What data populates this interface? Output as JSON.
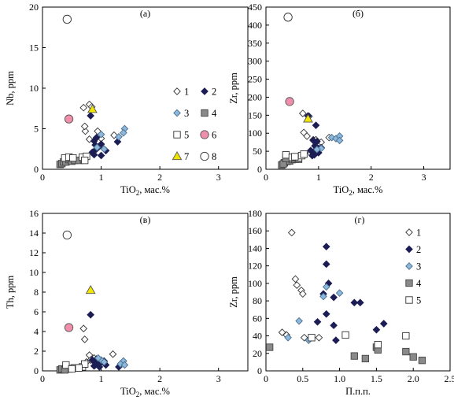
{
  "symbols": {
    "1": {
      "shape": "diamond",
      "fill": "#ffffff",
      "stroke": "#333333"
    },
    "2": {
      "shape": "diamond",
      "fill": "#1c1d54",
      "stroke": "#1c1d54"
    },
    "3": {
      "shape": "diamond",
      "fill": "#8bb8dc",
      "stroke": "#4d6f8e"
    },
    "4": {
      "shape": "square",
      "fill": "#8a8a8a",
      "stroke": "#444444"
    },
    "5": {
      "shape": "square",
      "fill": "#ffffff",
      "stroke": "#333333"
    },
    "6": {
      "shape": "circle",
      "fill": "#ef8fab",
      "stroke": "#555555"
    },
    "7": {
      "shape": "triangle",
      "fill": "#f2e600",
      "stroke": "#555555"
    },
    "8": {
      "shape": "circle",
      "fill": "#ffffff",
      "stroke": "#333333"
    }
  },
  "chart_data": [
    {
      "type": "scatter",
      "panel": "(а)",
      "ylabel": "Nb, ppm",
      "xlabel": "TiO2, мас.%",
      "xlabel_base": "TiO",
      "xlabel_sub": "2",
      "xlabel_rest": ", мас.%",
      "xlim": [
        0,
        3.5
      ],
      "ylim": [
        0,
        20
      ],
      "xticks": [
        "0",
        "1",
        "2",
        "3"
      ],
      "xtick_values": [
        0,
        1,
        2,
        3
      ],
      "yticks": [
        "0",
        "5",
        "10",
        "15",
        "20"
      ],
      "ytick_values": [
        0,
        5,
        10,
        15,
        20
      ],
      "legend": [
        {
          "label": "1",
          "group": "1"
        },
        {
          "label": "2",
          "group": "2"
        },
        {
          "label": "3",
          "group": "3"
        },
        {
          "label": "4",
          "group": "4"
        },
        {
          "label": "5",
          "group": "5"
        },
        {
          "label": "6",
          "group": "6"
        },
        {
          "label": "7",
          "group": "7"
        },
        {
          "label": "8",
          "group": "8"
        }
      ],
      "series": [
        {
          "group": "1",
          "points": [
            [
              0.7,
              7.6
            ],
            [
              0.8,
              8.0
            ],
            [
              0.84,
              7.7
            ],
            [
              0.73,
              4.7
            ],
            [
              0.72,
              5.3
            ],
            [
              0.94,
              4.7
            ],
            [
              1.0,
              3.8
            ],
            [
              1.22,
              4.2
            ],
            [
              0.8,
              3.7
            ]
          ]
        },
        {
          "group": "2",
          "points": [
            [
              0.82,
              6.6
            ],
            [
              0.88,
              3.5
            ],
            [
              0.9,
              3.0
            ],
            [
              0.92,
              2.5
            ],
            [
              0.85,
              2.1
            ],
            [
              0.88,
              1.8
            ],
            [
              0.95,
              2.7
            ],
            [
              1.0,
              3.1
            ],
            [
              1.08,
              2.3
            ],
            [
              1.0,
              1.7
            ],
            [
              1.28,
              3.4
            ],
            [
              0.92,
              3.9
            ]
          ]
        },
        {
          "group": "3",
          "points": [
            [
              1.4,
              5.0
            ],
            [
              1.38,
              4.5
            ],
            [
              1.0,
              4.3
            ],
            [
              1.3,
              4.0
            ],
            [
              1.05,
              2.5
            ],
            [
              0.93,
              2.7
            ]
          ]
        },
        {
          "group": "4",
          "points": [
            [
              0.3,
              0.6
            ],
            [
              0.33,
              0.7
            ],
            [
              0.36,
              0.9
            ],
            [
              0.4,
              0.9
            ],
            [
              0.45,
              1.2
            ],
            [
              0.5,
              1.0
            ],
            [
              0.55,
              1.1
            ],
            [
              0.62,
              1.1
            ],
            [
              0.7,
              1.2
            ]
          ]
        },
        {
          "group": "5",
          "points": [
            [
              0.38,
              1.4
            ],
            [
              0.45,
              1.5
            ],
            [
              0.52,
              1.4
            ],
            [
              0.68,
              1.5
            ],
            [
              0.75,
              1.6
            ],
            [
              0.72,
              1.1
            ]
          ]
        },
        {
          "group": "6",
          "points": [
            [
              0.45,
              6.2
            ]
          ]
        },
        {
          "group": "7",
          "points": [
            [
              0.85,
              7.4
            ]
          ]
        },
        {
          "group": "8",
          "points": [
            [
              0.42,
              18.5
            ]
          ]
        }
      ]
    },
    {
      "type": "scatter",
      "panel": "(б)",
      "ylabel": "Zr, ppm",
      "xlabel": "TiO2, мас.%",
      "xlabel_base": "TiO",
      "xlabel_sub": "2",
      "xlabel_rest": ", мас.%",
      "xlim": [
        0,
        3.5
      ],
      "ylim": [
        0,
        450
      ],
      "xticks": [
        "0",
        "1",
        "2",
        "3"
      ],
      "xtick_values": [
        0,
        1,
        2,
        3
      ],
      "yticks": [
        "0",
        "50",
        "100",
        "150",
        "200",
        "250",
        "300",
        "350",
        "400",
        "450"
      ],
      "ytick_values": [
        0,
        50,
        100,
        150,
        200,
        250,
        300,
        350,
        400,
        450
      ],
      "series": [
        {
          "group": "1",
          "points": [
            [
              0.7,
              155
            ],
            [
              0.82,
              147
            ],
            [
              0.72,
              102
            ],
            [
              0.78,
              92
            ],
            [
              0.9,
              82
            ],
            [
              0.95,
              82
            ],
            [
              1.2,
              88
            ],
            [
              1.05,
              75
            ],
            [
              0.85,
              45
            ]
          ]
        },
        {
          "group": "2",
          "points": [
            [
              0.8,
              148
            ],
            [
              0.95,
              122
            ],
            [
              0.9,
              80
            ],
            [
              0.97,
              77
            ],
            [
              0.85,
              52
            ],
            [
              0.9,
              48
            ],
            [
              1.0,
              46
            ],
            [
              0.92,
              40
            ],
            [
              0.88,
              38
            ],
            [
              1.05,
              60
            ],
            [
              1.0,
              58
            ],
            [
              0.93,
              65
            ]
          ]
        },
        {
          "group": "3",
          "points": [
            [
              1.25,
              88
            ],
            [
              1.33,
              85
            ],
            [
              1.4,
              92
            ],
            [
              1.4,
              80
            ],
            [
              1.05,
              58
            ],
            [
              0.97,
              55
            ]
          ]
        },
        {
          "group": "4",
          "points": [
            [
              0.3,
              12
            ],
            [
              0.35,
              18
            ],
            [
              0.4,
              22
            ],
            [
              0.45,
              23
            ],
            [
              0.5,
              27
            ],
            [
              0.55,
              28
            ],
            [
              0.62,
              28
            ],
            [
              0.33,
              15
            ],
            [
              0.38,
              30
            ]
          ]
        },
        {
          "group": "5",
          "points": [
            [
              0.38,
              40
            ],
            [
              0.5,
              33
            ],
            [
              0.62,
              32
            ],
            [
              0.68,
              38
            ],
            [
              0.72,
              42
            ],
            [
              0.55,
              35
            ]
          ]
        },
        {
          "group": "6",
          "points": [
            [
              0.45,
              188
            ]
          ]
        },
        {
          "group": "7",
          "points": [
            [
              0.8,
              140
            ]
          ]
        },
        {
          "group": "8",
          "points": [
            [
              0.42,
              422
            ]
          ]
        }
      ]
    },
    {
      "type": "scatter",
      "panel": "(в)",
      "ylabel": "Th, ppm",
      "xlabel": "TiO2, мас.%",
      "xlabel_base": "TiO",
      "xlabel_sub": "2",
      "xlabel_rest": ", мас.%",
      "xlim": [
        0,
        3.5
      ],
      "ylim": [
        0,
        16
      ],
      "xticks": [
        "0",
        "1",
        "2",
        "3"
      ],
      "xtick_values": [
        0,
        1,
        2,
        3
      ],
      "yticks": [
        "0",
        "2",
        "4",
        "6",
        "8",
        "10",
        "12",
        "14",
        "16"
      ],
      "ytick_values": [
        0,
        2,
        4,
        6,
        8,
        10,
        12,
        14,
        16
      ],
      "series": [
        {
          "group": "1",
          "points": [
            [
              0.7,
              4.3
            ],
            [
              0.72,
              3.2
            ],
            [
              0.8,
              1.6
            ],
            [
              0.82,
              1.1
            ],
            [
              0.88,
              1.3
            ],
            [
              1.2,
              1.7
            ],
            [
              1.05,
              0.8
            ],
            [
              0.9,
              0.6
            ],
            [
              0.75,
              0.9
            ]
          ]
        },
        {
          "group": "2",
          "points": [
            [
              0.82,
              5.7
            ],
            [
              0.85,
              1.1
            ],
            [
              0.9,
              0.9
            ],
            [
              0.92,
              0.7
            ],
            [
              0.95,
              0.6
            ],
            [
              1.0,
              0.9
            ],
            [
              1.05,
              1.0
            ],
            [
              0.88,
              0.5
            ],
            [
              0.97,
              0.4
            ],
            [
              1.08,
              0.6
            ],
            [
              1.3,
              0.4
            ],
            [
              0.92,
              1.2
            ]
          ]
        },
        {
          "group": "3",
          "points": [
            [
              1.38,
              1.0
            ],
            [
              1.33,
              0.7
            ],
            [
              1.0,
              1.1
            ],
            [
              1.05,
              0.9
            ],
            [
              0.95,
              1.3
            ],
            [
              1.4,
              0.6
            ]
          ]
        },
        {
          "group": "4",
          "points": [
            [
              0.3,
              0.1
            ],
            [
              0.35,
              0.15
            ],
            [
              0.4,
              0.2
            ],
            [
              0.45,
              0.2
            ],
            [
              0.5,
              0.25
            ],
            [
              0.55,
              0.3
            ],
            [
              0.62,
              0.3
            ],
            [
              0.33,
              0.2
            ],
            [
              0.38,
              0.1
            ]
          ]
        },
        {
          "group": "5",
          "points": [
            [
              0.4,
              0.6
            ],
            [
              0.55,
              0.3
            ],
            [
              0.68,
              0.4
            ],
            [
              0.72,
              0.7
            ],
            [
              0.62,
              0.3
            ],
            [
              0.5,
              0.2
            ]
          ]
        },
        {
          "group": "6",
          "points": [
            [
              0.45,
              4.4
            ]
          ]
        },
        {
          "group": "7",
          "points": [
            [
              0.82,
              8.2
            ]
          ]
        },
        {
          "group": "8",
          "points": [
            [
              0.42,
              13.8
            ]
          ]
        }
      ]
    },
    {
      "type": "scatter",
      "panel": "(г)",
      "ylabel": "Zr, ppm",
      "xlabel": "П.п.п.",
      "xlim": [
        0,
        2.5
      ],
      "ylim": [
        0,
        180
      ],
      "xticks": [
        "0",
        "0.5",
        "1.0",
        "1.5",
        "2.0",
        "2.5"
      ],
      "xtick_values": [
        0,
        0.5,
        1.0,
        1.5,
        2.0,
        2.5
      ],
      "yticks": [
        "0",
        "20",
        "40",
        "60",
        "80",
        "100",
        "120",
        "140",
        "160",
        "180"
      ],
      "ytick_values": [
        0,
        20,
        40,
        60,
        80,
        100,
        120,
        140,
        160,
        180
      ],
      "legend": [
        {
          "label": "1",
          "group": "1"
        },
        {
          "label": "2",
          "group": "2"
        },
        {
          "label": "3",
          "group": "3"
        },
        {
          "label": "4",
          "group": "4"
        },
        {
          "label": "5",
          "group": "5"
        }
      ],
      "series": [
        {
          "group": "1",
          "points": [
            [
              0.35,
              158
            ],
            [
              0.4,
              105
            ],
            [
              0.42,
              98
            ],
            [
              0.48,
              92
            ],
            [
              0.5,
              88
            ],
            [
              0.22,
              44
            ],
            [
              0.28,
              41
            ],
            [
              0.52,
              38
            ],
            [
              0.72,
              38
            ]
          ]
        },
        {
          "group": "2",
          "points": [
            [
              0.82,
              142
            ],
            [
              0.82,
              122
            ],
            [
              0.85,
              100
            ],
            [
              0.78,
              88
            ],
            [
              0.92,
              84
            ],
            [
              1.2,
              78
            ],
            [
              1.28,
              78
            ],
            [
              0.82,
              65
            ],
            [
              0.92,
              52
            ],
            [
              0.7,
              56
            ],
            [
              1.5,
              47
            ],
            [
              1.6,
              54
            ],
            [
              0.95,
              35
            ]
          ]
        },
        {
          "group": "3",
          "points": [
            [
              0.82,
              96
            ],
            [
              1.0,
              89
            ],
            [
              0.78,
              85
            ],
            [
              0.45,
              57
            ],
            [
              0.3,
              38
            ],
            [
              0.58,
              35
            ]
          ]
        },
        {
          "group": "4",
          "points": [
            [
              0.05,
              27
            ],
            [
              1.2,
              17
            ],
            [
              1.35,
              14
            ],
            [
              1.5,
              27
            ],
            [
              1.52,
              24
            ],
            [
              1.9,
              22
            ],
            [
              2.0,
              16
            ],
            [
              2.12,
              12
            ]
          ]
        },
        {
          "group": "5",
          "points": [
            [
              0.62,
              38
            ],
            [
              1.08,
              41
            ],
            [
              1.52,
              30
            ],
            [
              1.9,
              40
            ]
          ]
        }
      ]
    }
  ]
}
